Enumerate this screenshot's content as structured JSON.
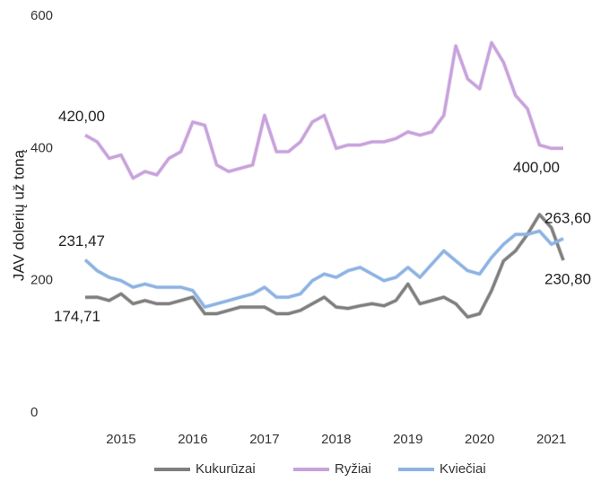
{
  "chart_data": {
    "type": "line",
    "y_label": "JAV dolerių už toną",
    "categories": [
      null,
      null,
      null,
      "2015",
      null,
      null,
      null,
      null,
      null,
      "2016",
      null,
      null,
      null,
      null,
      null,
      "2017",
      null,
      null,
      null,
      null,
      null,
      "2018",
      null,
      null,
      null,
      null,
      null,
      "2019",
      null,
      null,
      null,
      null,
      null,
      "2020",
      null,
      null,
      null,
      null,
      null,
      "2021",
      null
    ],
    "ylim": [
      0,
      600
    ],
    "yticks": [
      0,
      200,
      400,
      600
    ],
    "series": [
      {
        "name": "Kukurūzai",
        "color": "#7f7f7f",
        "values": [
          174.71,
          175,
          170,
          180,
          165,
          170,
          165,
          165,
          170,
          175,
          150,
          150,
          155,
          160,
          160,
          160,
          150,
          150,
          155,
          165,
          175,
          160,
          158,
          162,
          165,
          162,
          170,
          195,
          165,
          170,
          175,
          165,
          145,
          150,
          185,
          230,
          245,
          270,
          300,
          280,
          230.8
        ],
        "value_labels": [
          "174,71",
          null,
          null,
          null,
          null,
          null,
          null,
          null,
          null,
          null,
          null,
          null,
          null,
          null,
          null,
          null,
          null,
          null,
          null,
          null,
          null,
          null,
          null,
          null,
          null,
          null,
          null,
          null,
          null,
          null,
          null,
          null,
          null,
          null,
          null,
          null,
          null,
          null,
          null,
          null,
          "230,80"
        ]
      },
      {
        "name": "Ryžiai",
        "color": "#c8a2dc",
        "values": [
          420,
          410,
          385,
          390,
          355,
          365,
          360,
          385,
          395,
          440,
          435,
          375,
          365,
          370,
          375,
          450,
          395,
          395,
          410,
          440,
          450,
          400,
          405,
          405,
          410,
          410,
          415,
          425,
          420,
          425,
          450,
          555,
          505,
          490,
          560,
          530,
          480,
          460,
          405,
          400,
          400
        ],
        "value_labels": [
          "420,00",
          null,
          null,
          null,
          null,
          null,
          null,
          null,
          null,
          null,
          null,
          null,
          null,
          null,
          null,
          null,
          null,
          null,
          null,
          null,
          null,
          null,
          null,
          null,
          null,
          null,
          null,
          null,
          null,
          null,
          null,
          null,
          null,
          null,
          null,
          null,
          null,
          null,
          null,
          null,
          "400,00"
        ]
      },
      {
        "name": "Kviečiai",
        "color": "#8db3e2",
        "values": [
          231.47,
          215,
          205,
          200,
          190,
          195,
          190,
          190,
          190,
          185,
          160,
          165,
          170,
          175,
          180,
          190,
          175,
          175,
          180,
          200,
          210,
          205,
          215,
          220,
          210,
          200,
          205,
          220,
          205,
          225,
          245,
          230,
          215,
          210,
          235,
          255,
          270,
          270,
          275,
          255,
          263.6
        ],
        "value_labels": [
          "231,47",
          null,
          null,
          null,
          null,
          null,
          null,
          null,
          null,
          null,
          null,
          null,
          null,
          null,
          null,
          null,
          null,
          null,
          null,
          null,
          null,
          null,
          null,
          null,
          null,
          null,
          null,
          null,
          null,
          null,
          null,
          null,
          null,
          null,
          null,
          null,
          null,
          null,
          null,
          null,
          "263,60"
        ]
      }
    ],
    "legend": "bottom"
  }
}
